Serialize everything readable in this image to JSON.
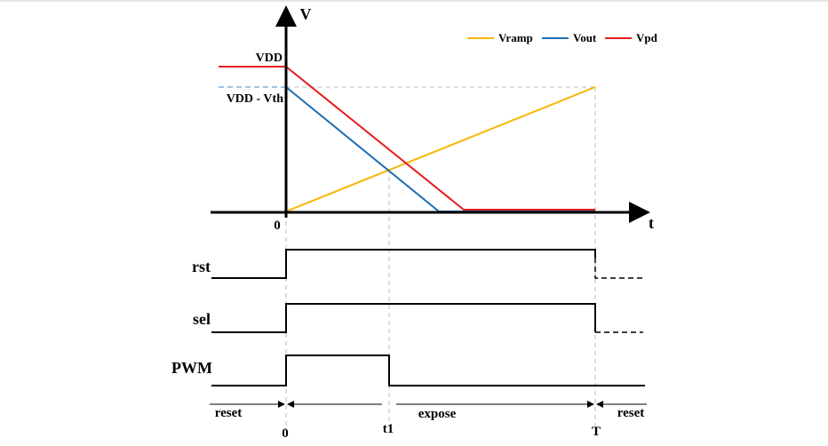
{
  "axis_labels": {
    "v": "V",
    "t": "t",
    "origin": "0"
  },
  "level_labels": {
    "vdd": "VDD",
    "vdd_vth": "VDD - Vth"
  },
  "legend": [
    {
      "name": "Vramp",
      "color": "#f5b700"
    },
    {
      "name": "Vout",
      "color": "#1a6fb5"
    },
    {
      "name": "Vpd",
      "color": "#e81c1c"
    }
  ],
  "signals": {
    "rst": "rst",
    "sel": "sel",
    "pwm": "PWM"
  },
  "phases": {
    "reset_left": "reset",
    "expose": "expose",
    "reset_right": "reset"
  },
  "time_marks": {
    "zero": "0",
    "t1": "t1",
    "T": "T"
  },
  "colors": {
    "axis": "#000000",
    "guide": "#bbbbbb",
    "vdd_vth_dash": "#7fb0dc"
  }
}
